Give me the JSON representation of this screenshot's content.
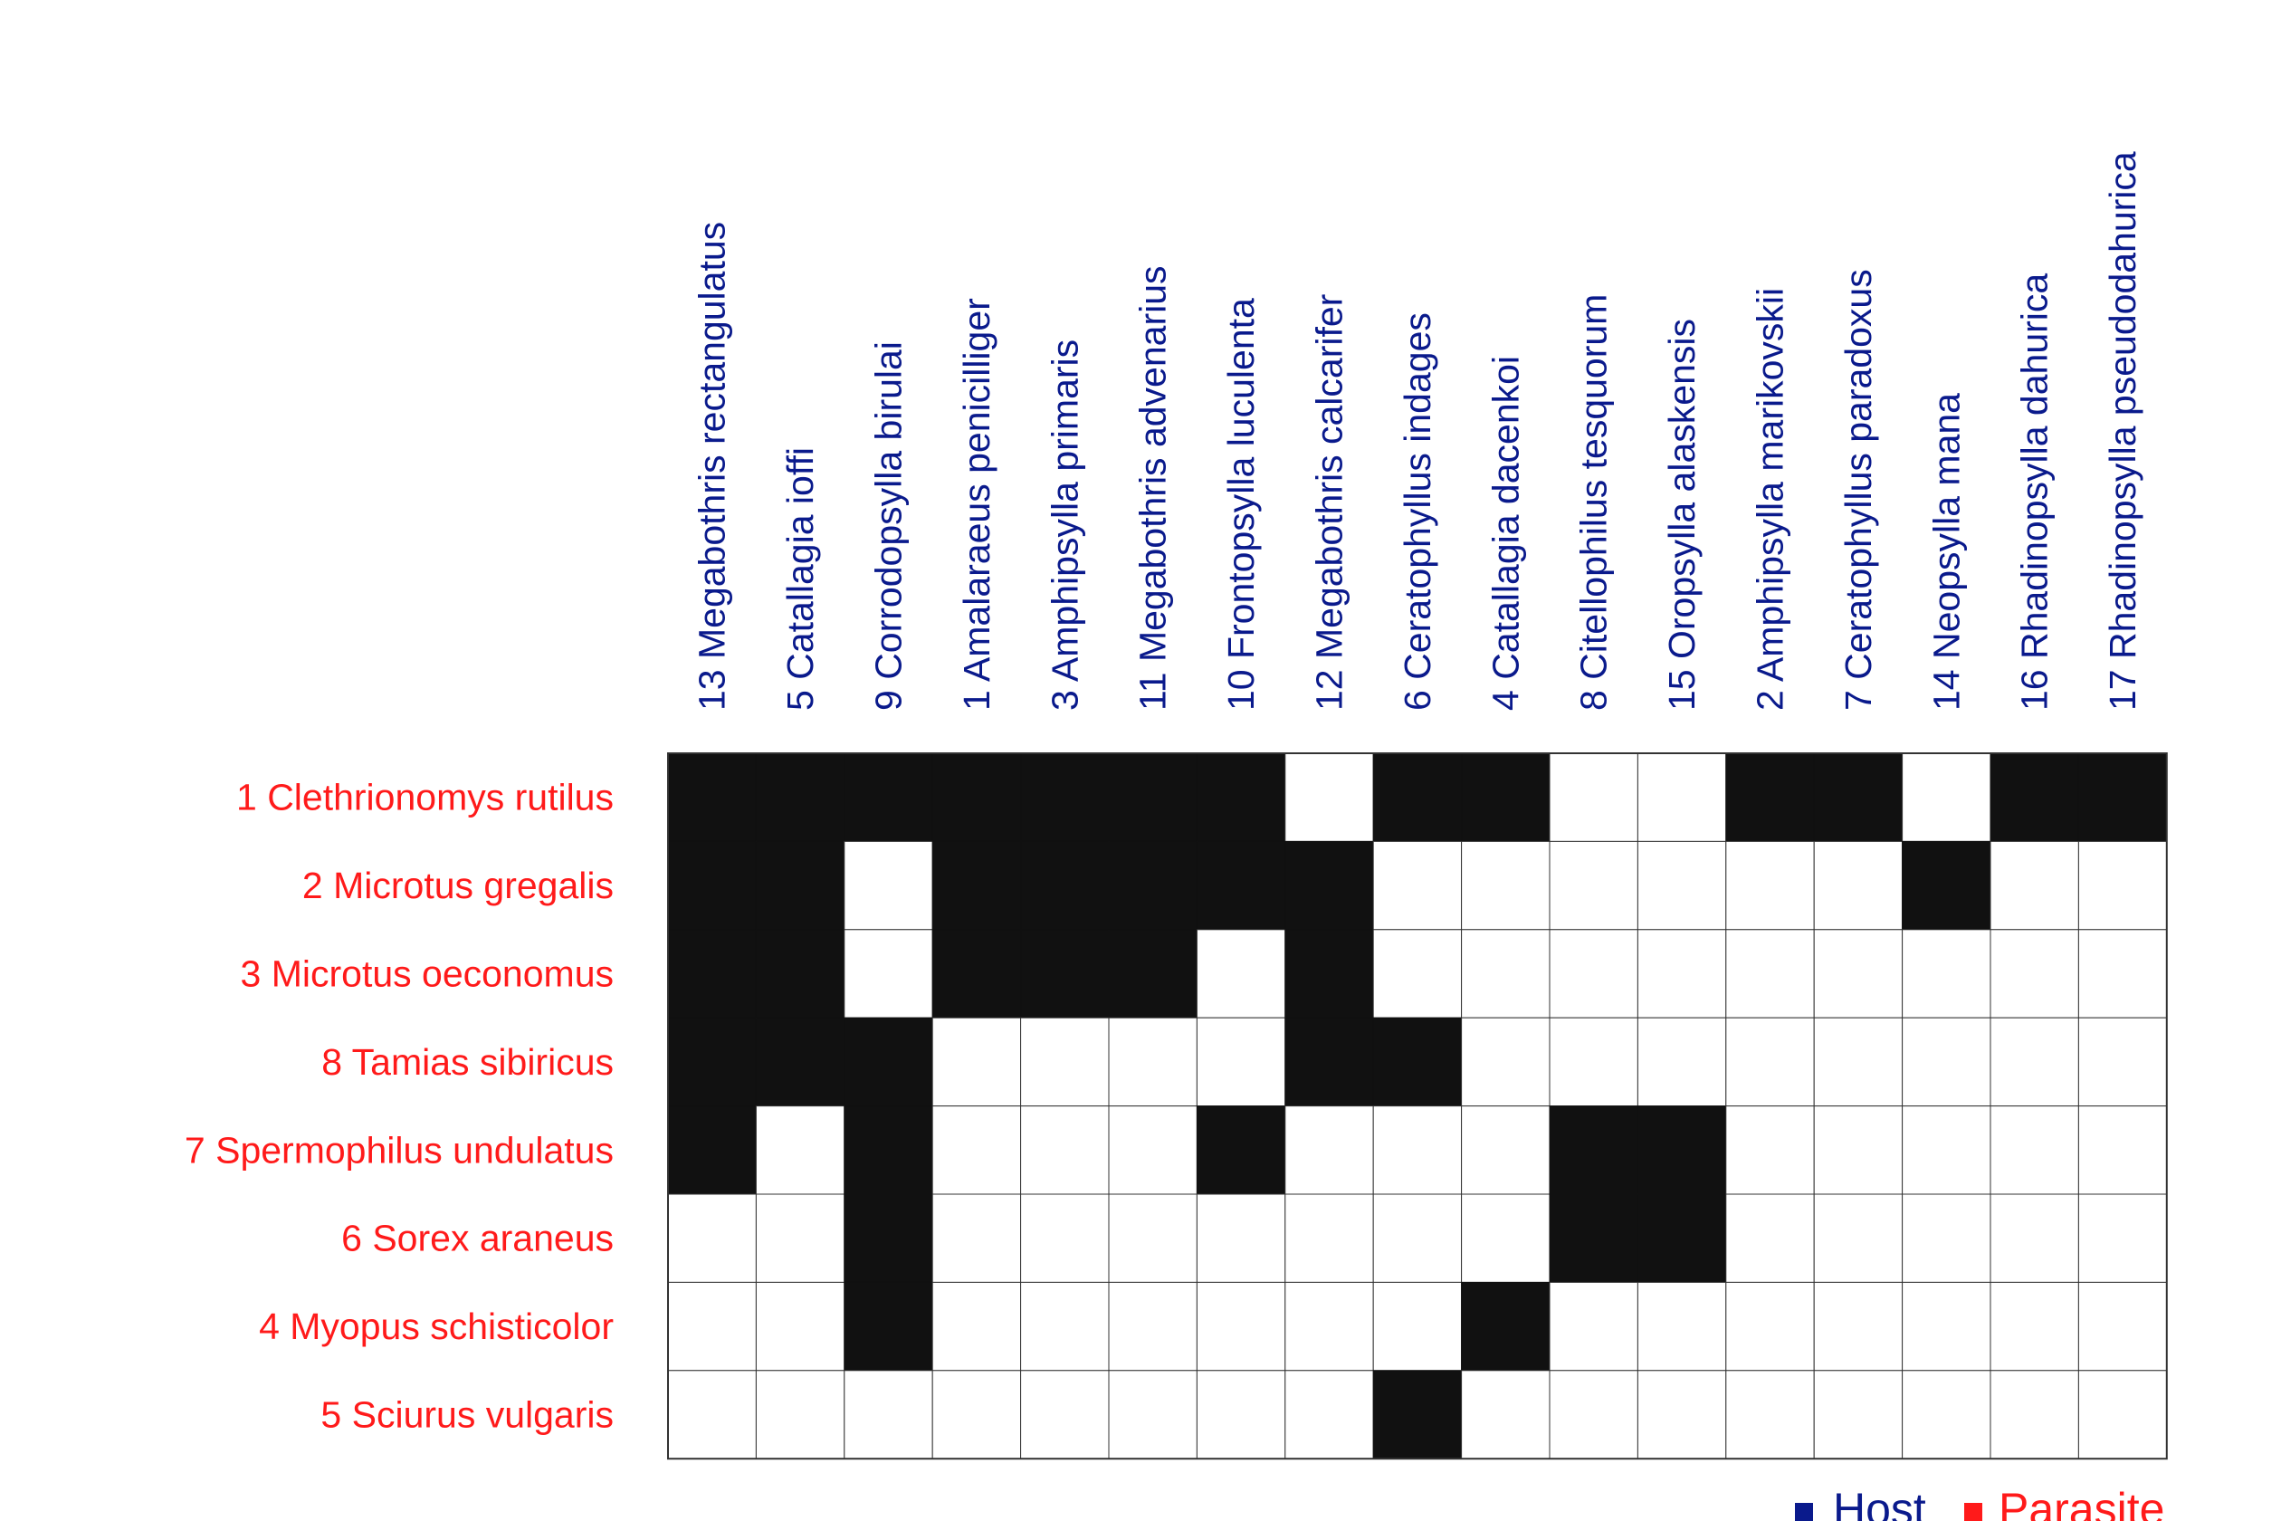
{
  "chart_data": {
    "type": "heatmap",
    "title": "",
    "xlabel": "",
    "ylabel": "",
    "columns": [
      "13 Megabothris rectangulatus",
      "5 Catallagia ioffi",
      "9 Corrodopsylla birulai",
      "1 Amalaraeus penicilliger",
      "3 Amphipsylla primaris",
      "11 Megabothris advenarius",
      "10 Frontopsylla luculenta",
      "12 Megabothris calcarifer",
      "6 Ceratophyllus indages",
      "4 Catallagia dacenkoi",
      "8 Citellophilus tesquorum",
      "15 Oropsylla alaskensis",
      "2 Amphipsylla marikovskii",
      "7 Ceratophyllus paradoxus",
      "14 Neopsylla mana",
      "16 Rhadinopsylla dahurica",
      "17 Rhadinopsylla pseudodahurica"
    ],
    "rows": [
      "1 Clethrionomys rutilus",
      "2 Microtus gregalis",
      "3 Microtus oeconomus",
      "8 Tamias sibiricus",
      "7 Spermophilus undulatus",
      "6 Sorex araneus",
      "4 Myopus schisticolor",
      "5 Sciurus vulgaris"
    ],
    "matrix": [
      [
        1,
        1,
        1,
        1,
        1,
        1,
        1,
        0,
        1,
        1,
        0,
        0,
        1,
        1,
        0,
        1,
        1
      ],
      [
        1,
        1,
        0,
        1,
        1,
        1,
        1,
        1,
        0,
        0,
        0,
        0,
        0,
        0,
        1,
        0,
        0
      ],
      [
        1,
        1,
        0,
        1,
        1,
        1,
        0,
        1,
        0,
        0,
        0,
        0,
        0,
        0,
        0,
        0,
        0
      ],
      [
        1,
        1,
        1,
        0,
        0,
        0,
        0,
        1,
        1,
        0,
        0,
        0,
        0,
        0,
        0,
        0,
        0
      ],
      [
        1,
        0,
        1,
        0,
        0,
        0,
        1,
        0,
        0,
        0,
        1,
        1,
        0,
        0,
        0,
        0,
        0
      ],
      [
        0,
        0,
        1,
        0,
        0,
        0,
        0,
        0,
        0,
        0,
        1,
        1,
        0,
        0,
        0,
        0,
        0
      ],
      [
        0,
        0,
        1,
        0,
        0,
        0,
        0,
        0,
        0,
        1,
        0,
        0,
        0,
        0,
        0,
        0,
        0
      ],
      [
        0,
        0,
        0,
        0,
        0,
        0,
        0,
        0,
        1,
        0,
        0,
        0,
        0,
        0,
        0,
        0,
        0
      ]
    ],
    "legend": {
      "placement": "bottom-right",
      "entries": [
        {
          "label": "Host",
          "color": "#0a1a8c"
        },
        {
          "label": "Parasite",
          "color": "#ff1a1a"
        }
      ]
    },
    "colors": {
      "filled": "#111111",
      "empty": "#ffffff",
      "grid": "#333333",
      "column_label": "#0a1a8c",
      "row_label": "#ff1a1a"
    }
  }
}
